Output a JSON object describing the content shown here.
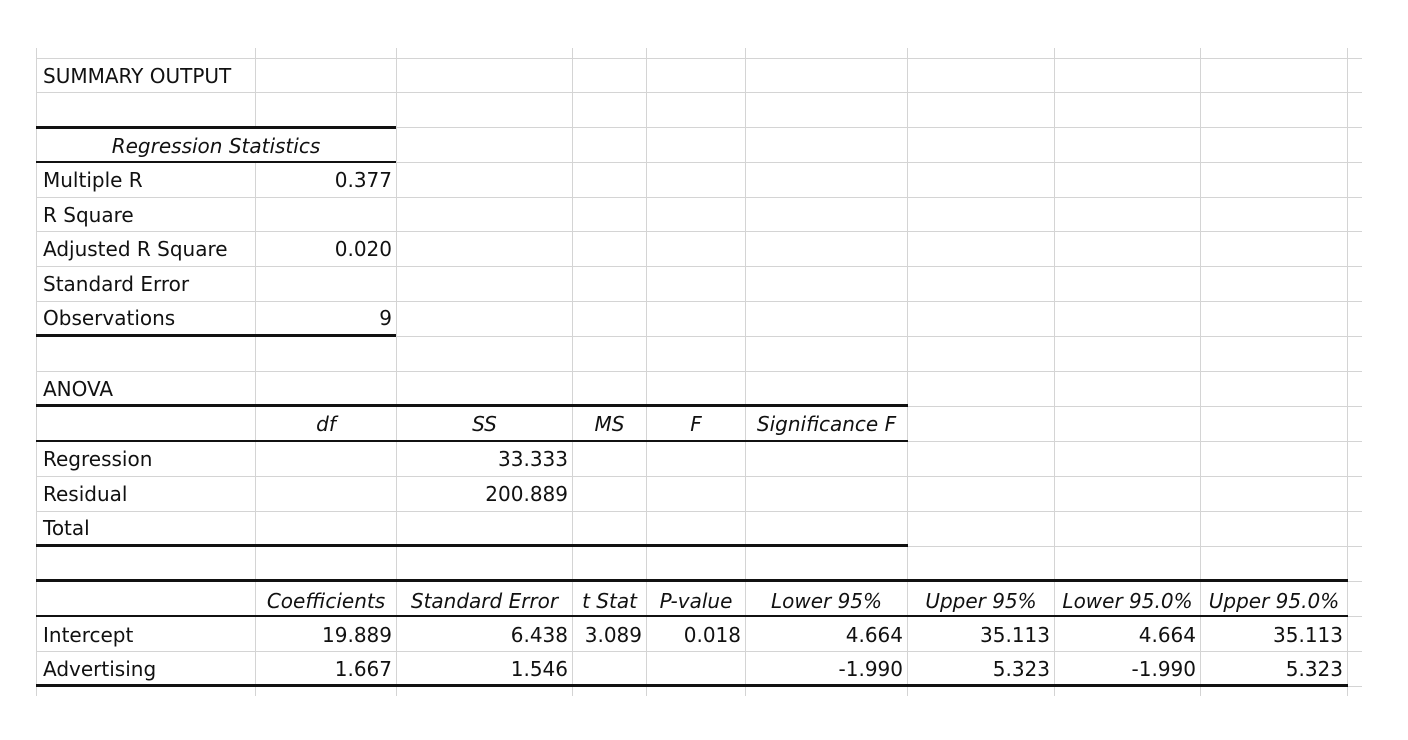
{
  "summary_title": "SUMMARY OUTPUT",
  "regression_statistics": {
    "header": "Regression Statistics",
    "rows": [
      {
        "label": "Multiple R",
        "value": "0.377"
      },
      {
        "label": "R Square",
        "value": ""
      },
      {
        "label": "Adjusted R Square",
        "value": "0.020"
      },
      {
        "label": "Standard Error",
        "value": ""
      },
      {
        "label": "Observations",
        "value": "9"
      }
    ]
  },
  "anova": {
    "title": "ANOVA",
    "headers": [
      "df",
      "SS",
      "MS",
      "F",
      "Significance F"
    ],
    "rows": [
      {
        "label": "Regression",
        "df": "",
        "ss": "33.333",
        "ms": "",
        "f": "",
        "sig": ""
      },
      {
        "label": "Residual",
        "df": "",
        "ss": "200.889",
        "ms": "",
        "f": "",
        "sig": ""
      },
      {
        "label": "Total",
        "df": "",
        "ss": "",
        "ms": "",
        "f": "",
        "sig": ""
      }
    ]
  },
  "coefficients": {
    "headers": [
      "Coefficients",
      "Standard Error",
      "t Stat",
      "P-value",
      "Lower 95%",
      "Upper 95%",
      "Lower 95.0%",
      "Upper 95.0%"
    ],
    "rows": [
      {
        "label": "Intercept",
        "values": [
          "19.889",
          "6.438",
          "3.089",
          "0.018",
          "4.664",
          "35.113",
          "4.664",
          "35.113"
        ]
      },
      {
        "label": "Advertising",
        "values": [
          "1.667",
          "1.546",
          "",
          "",
          "-1.990",
          "5.323",
          "-1.990",
          "5.323"
        ]
      }
    ]
  }
}
